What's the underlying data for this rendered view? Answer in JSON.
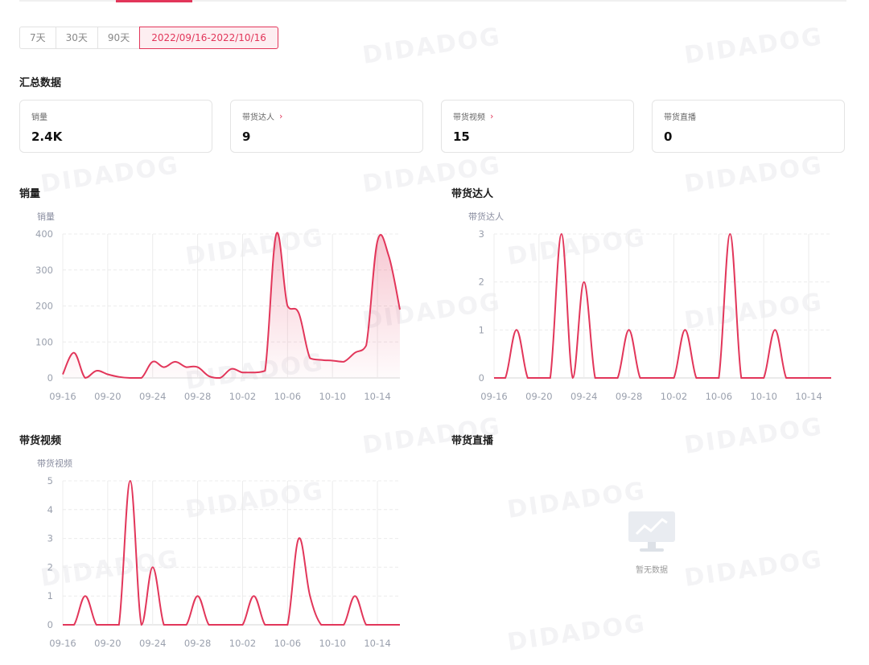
{
  "date_range": {
    "options": [
      "7天",
      "30天",
      "90天"
    ],
    "selected": "2022/09/16-2022/10/16"
  },
  "summary": {
    "title": "汇总数据",
    "cards": [
      {
        "label": "销量",
        "value": "2.4K",
        "has_link": false
      },
      {
        "label": "带货达人",
        "value": "9",
        "has_link": true
      },
      {
        "label": "带货视频",
        "value": "15",
        "has_link": true
      },
      {
        "label": "带货直播",
        "value": "0",
        "has_link": false
      }
    ]
  },
  "watermark_text": "DIDADOG",
  "accent_color": "#e2365a",
  "charts": {
    "live": {
      "title": "带货直播",
      "empty_text": "暂无数据"
    }
  },
  "chart_data": [
    {
      "id": "sales",
      "type": "area",
      "title": "销量",
      "ylabel": "销量",
      "ylim": [
        0,
        400
      ],
      "yticks": [
        0,
        100,
        200,
        300,
        400
      ],
      "xticks": [
        "09-16",
        "09-20",
        "09-24",
        "09-28",
        "10-02",
        "10-06",
        "10-10",
        "10-14"
      ],
      "x": [
        "09-16",
        "09-17",
        "09-18",
        "09-19",
        "09-20",
        "09-21",
        "09-22",
        "09-23",
        "09-24",
        "09-25",
        "09-26",
        "09-27",
        "09-28",
        "09-29",
        "09-30",
        "10-01",
        "10-02",
        "10-03",
        "10-04",
        "10-05",
        "10-06",
        "10-07",
        "10-08",
        "10-09",
        "10-10",
        "10-11",
        "10-12",
        "10-13",
        "10-14",
        "10-15",
        "10-16"
      ],
      "series": [
        {
          "values": [
            10,
            70,
            0,
            20,
            10,
            3,
            0,
            0,
            45,
            30,
            45,
            30,
            30,
            5,
            0,
            25,
            15,
            15,
            20,
            400,
            200,
            180,
            55,
            50,
            48,
            45,
            70,
            90,
            380,
            340,
            190
          ]
        }
      ]
    },
    {
      "id": "influencers",
      "type": "line",
      "title": "带货达人",
      "ylabel": "带货达人",
      "ylim": [
        0,
        3
      ],
      "yticks": [
        0,
        1,
        2,
        3
      ],
      "xticks": [
        "09-16",
        "09-20",
        "09-24",
        "09-28",
        "10-02",
        "10-06",
        "10-10",
        "10-14"
      ],
      "x": [
        "09-16",
        "09-17",
        "09-18",
        "09-19",
        "09-20",
        "09-21",
        "09-22",
        "09-23",
        "09-24",
        "09-25",
        "09-26",
        "09-27",
        "09-28",
        "09-29",
        "09-30",
        "10-01",
        "10-02",
        "10-03",
        "10-04",
        "10-05",
        "10-06",
        "10-07",
        "10-08",
        "10-09",
        "10-10",
        "10-11",
        "10-12",
        "10-13",
        "10-14",
        "10-15",
        "10-16"
      ],
      "series": [
        {
          "values": [
            0,
            0,
            1,
            0,
            0,
            0,
            3,
            0,
            2,
            0,
            0,
            0,
            1,
            0,
            0,
            0,
            0,
            1,
            0,
            0,
            0,
            3,
            0,
            0,
            0,
            1,
            0,
            0,
            0,
            0,
            0
          ]
        }
      ]
    },
    {
      "id": "videos",
      "type": "line",
      "title": "带货视频",
      "ylabel": "带货视频",
      "ylim": [
        0,
        5
      ],
      "yticks": [
        0,
        1,
        2,
        3,
        4,
        5
      ],
      "xticks": [
        "09-16",
        "09-20",
        "09-24",
        "09-28",
        "10-02",
        "10-06",
        "10-10",
        "10-14"
      ],
      "x": [
        "09-16",
        "09-17",
        "09-18",
        "09-19",
        "09-20",
        "09-21",
        "09-22",
        "09-23",
        "09-24",
        "09-25",
        "09-26",
        "09-27",
        "09-28",
        "09-29",
        "09-30",
        "10-01",
        "10-02",
        "10-03",
        "10-04",
        "10-05",
        "10-06",
        "10-07",
        "10-08",
        "10-09",
        "10-10",
        "10-11",
        "10-12",
        "10-13",
        "10-14",
        "10-15",
        "10-16"
      ],
      "series": [
        {
          "values": [
            0,
            0,
            1,
            0,
            0,
            0,
            5,
            0,
            2,
            0,
            0,
            0,
            1,
            0,
            0,
            0,
            0,
            1,
            0,
            0,
            0,
            3,
            1,
            0,
            0,
            0,
            1,
            0,
            0,
            0,
            0
          ]
        }
      ]
    }
  ]
}
